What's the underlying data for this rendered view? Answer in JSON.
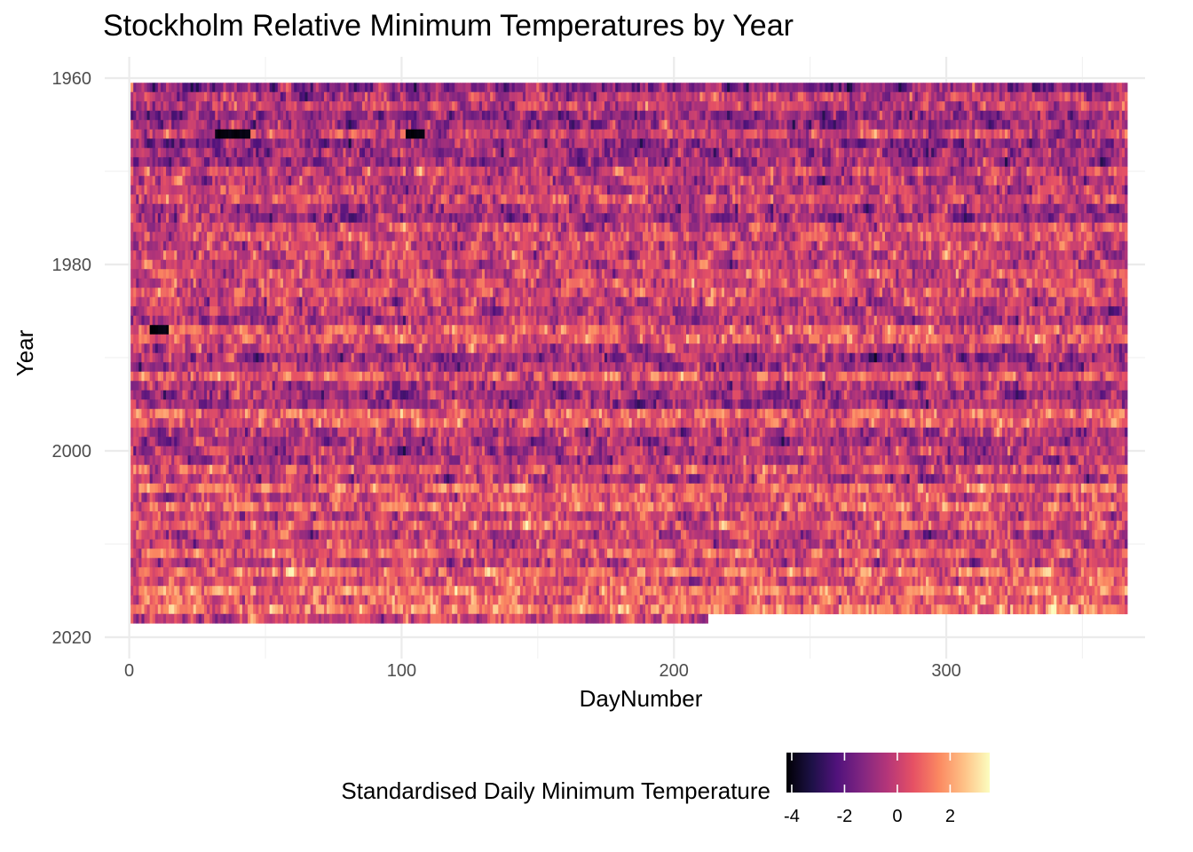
{
  "chart_data": {
    "type": "heatmap",
    "title": "Stockholm Relative Minimum Temperatures by Year",
    "xlabel": "DayNumber",
    "ylabel": "Year",
    "xlim": [
      -9,
      373
    ],
    "ylim": [
      1960,
      2020
    ],
    "y_reversed": true,
    "x_ticks": [
      0,
      100,
      200,
      300
    ],
    "x_tick_labels": [
      "0",
      "100",
      "200",
      "300"
    ],
    "y_ticks": [
      1960,
      1980,
      2000,
      2020
    ],
    "y_tick_labels": [
      "1960",
      "1980",
      "2000",
      "2020"
    ],
    "grid": true,
    "year_range": [
      1961,
      2018
    ],
    "day_range": [
      1,
      366
    ],
    "last_year_max_day": 212,
    "cell_values": "dense grid of standardised values (approx. -4 to 3.5) per year and day; individual values not readable",
    "notable_cold_spots": [
      {
        "year": 1966,
        "days": [
          32,
          44
        ]
      },
      {
        "year": 1966,
        "days": [
          102,
          108
        ]
      },
      {
        "year": 1987,
        "days": [
          8,
          14
        ]
      }
    ],
    "legend": {
      "title": "Standardised Daily Minimum Temperature",
      "position": "bottom",
      "colormap": "magma",
      "range": [
        -4.2,
        3.5
      ],
      "ticks": [
        -4,
        -2,
        0,
        2
      ],
      "tick_labels": [
        "-4",
        "-2",
        "0",
        "2"
      ]
    }
  },
  "colors": {
    "magma_stops": [
      "#000004",
      "#1d1147",
      "#51127c",
      "#822681",
      "#b63679",
      "#e65164",
      "#fb8861",
      "#fec287",
      "#fcfdbf"
    ],
    "grid_major": "#ebebeb",
    "grid_minor": "#f2f2f2",
    "background": "#ffffff"
  }
}
